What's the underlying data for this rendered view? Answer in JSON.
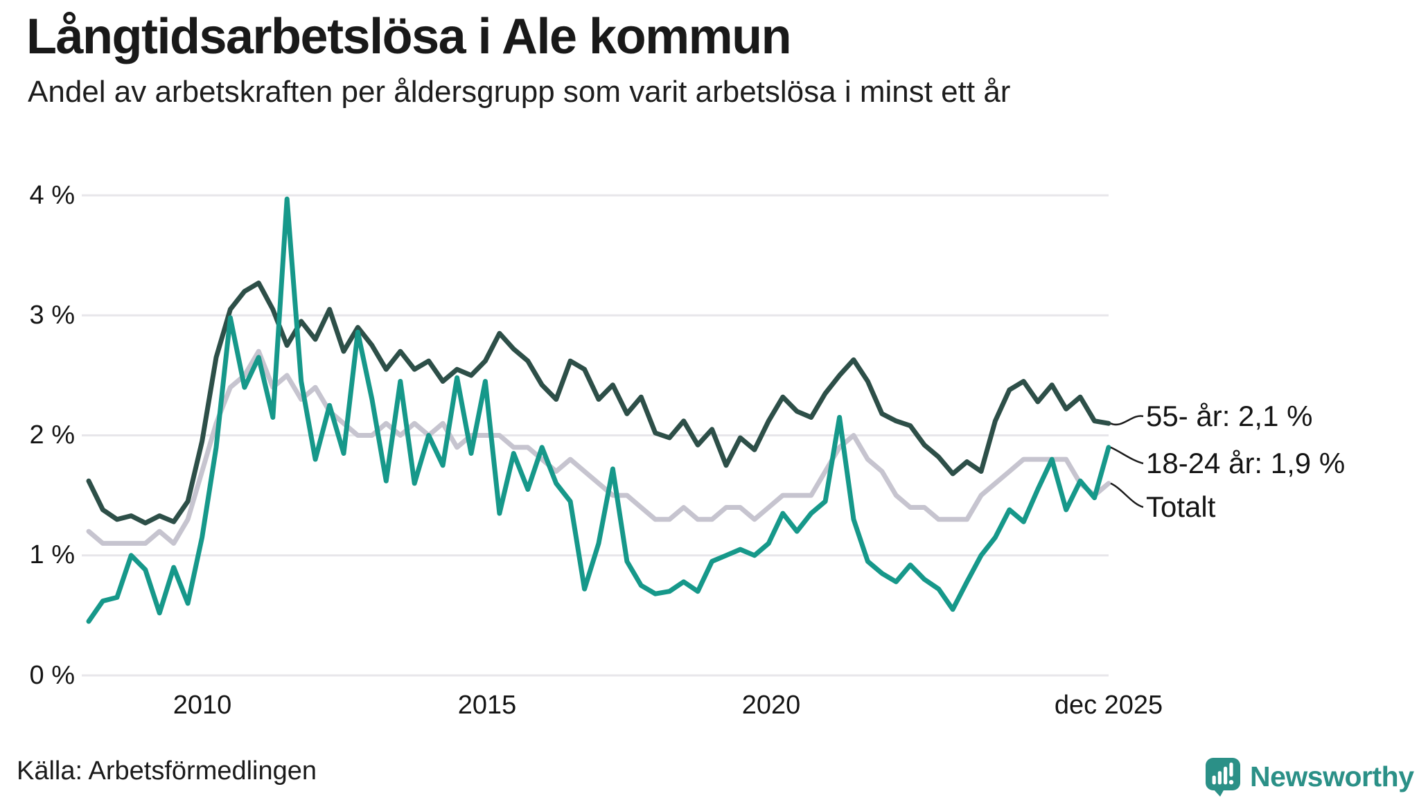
{
  "header": {
    "title": "Långtidsarbetslösa i Ale kommun",
    "subtitle": "Andel av arbetskraften per åldersgrupp som varit arbetslösa i minst ett år"
  },
  "footer": {
    "source": "Källa: Arbetsförmedlingen",
    "brand": "Newsworthy"
  },
  "colors": {
    "grid": "#e7e6ea",
    "text": "#1a1a1a",
    "connector": "#1b1b1b",
    "brand_teal": "#2b9087"
  },
  "chart_data": {
    "type": "line",
    "title": "Långtidsarbetslösa i Ale kommun",
    "subtitle": "Andel av arbetskraften per åldersgrupp som varit arbetslösa i minst ett år",
    "source": "Källa: Arbetsförmedlingen",
    "x_start_year": 2008,
    "x_end_year": 2025.92,
    "x_unit": "quarterly samples 2008Q1–2025Q4 plus dec 2025 endpoint",
    "ylim": [
      0,
      4.15
    ],
    "grid": true,
    "legend_position": "right-end-labels",
    "y_ticks": [
      {
        "label": "4 %",
        "value": 4
      },
      {
        "label": "3 %",
        "value": 3
      },
      {
        "label": "2 %",
        "value": 2
      },
      {
        "label": "1 %",
        "value": 1
      },
      {
        "label": "0 %",
        "value": 0
      }
    ],
    "x_ticks": [
      {
        "label": "2010",
        "year": 2010
      },
      {
        "label": "2015",
        "year": 2015
      },
      {
        "label": "2020",
        "year": 2020
      },
      {
        "label": "dec 2025",
        "year": 2025.92
      }
    ],
    "series": [
      {
        "name": "55- år",
        "end_label": "55- år: 2,1 %",
        "end_value": 2.1,
        "color": "#2d4f48",
        "values": [
          1.62,
          1.38,
          1.3,
          1.33,
          1.27,
          1.33,
          1.28,
          1.45,
          1.95,
          2.65,
          3.05,
          3.2,
          3.27,
          3.05,
          2.75,
          2.95,
          2.8,
          3.05,
          2.7,
          2.9,
          2.75,
          2.55,
          2.7,
          2.55,
          2.62,
          2.45,
          2.55,
          2.5,
          2.62,
          2.85,
          2.72,
          2.62,
          2.42,
          2.3,
          2.62,
          2.55,
          2.3,
          2.42,
          2.18,
          2.32,
          2.02,
          1.98,
          2.12,
          1.92,
          2.05,
          1.75,
          1.98,
          1.88,
          2.12,
          2.32,
          2.2,
          2.15,
          2.35,
          2.5,
          2.63,
          2.45,
          2.18,
          2.12,
          2.08,
          1.92,
          1.82,
          1.68,
          1.78,
          1.7,
          2.12,
          2.38,
          2.45,
          2.28,
          2.42,
          2.22,
          2.32,
          2.12,
          2.1
        ]
      },
      {
        "name": "18-24 år",
        "end_label": "18-24 år: 1,9 %",
        "end_value": 1.9,
        "color": "#16988a",
        "values": [
          0.45,
          0.62,
          0.65,
          1.0,
          0.88,
          0.52,
          0.9,
          0.6,
          1.15,
          1.9,
          2.98,
          2.4,
          2.65,
          2.15,
          3.97,
          2.45,
          1.8,
          2.25,
          1.85,
          2.86,
          2.3,
          1.62,
          2.45,
          1.6,
          2.0,
          1.75,
          2.48,
          1.85,
          2.45,
          1.35,
          1.85,
          1.55,
          1.9,
          1.6,
          1.45,
          0.72,
          1.1,
          1.72,
          0.95,
          0.75,
          0.68,
          0.7,
          0.78,
          0.7,
          0.95,
          1.0,
          1.05,
          1.0,
          1.1,
          1.35,
          1.2,
          1.35,
          1.45,
          2.15,
          1.3,
          0.95,
          0.85,
          0.78,
          0.92,
          0.8,
          0.72,
          0.55,
          0.78,
          1.0,
          1.15,
          1.38,
          1.28,
          1.55,
          1.8,
          1.38,
          1.62,
          1.48,
          1.9
        ]
      },
      {
        "name": "Totalt",
        "end_label": "Totalt",
        "end_value": 1.6,
        "color": "#c6c4cf",
        "values": [
          1.2,
          1.1,
          1.1,
          1.1,
          1.1,
          1.2,
          1.1,
          1.3,
          1.7,
          2.1,
          2.4,
          2.5,
          2.7,
          2.4,
          2.5,
          2.3,
          2.4,
          2.2,
          2.1,
          2.0,
          2.0,
          2.1,
          2.0,
          2.1,
          2.0,
          2.1,
          1.9,
          2.0,
          2.0,
          2.0,
          1.9,
          1.9,
          1.8,
          1.7,
          1.8,
          1.7,
          1.6,
          1.5,
          1.5,
          1.4,
          1.3,
          1.3,
          1.4,
          1.3,
          1.3,
          1.4,
          1.4,
          1.3,
          1.4,
          1.5,
          1.5,
          1.5,
          1.7,
          1.9,
          2.0,
          1.8,
          1.7,
          1.5,
          1.4,
          1.4,
          1.3,
          1.3,
          1.3,
          1.5,
          1.6,
          1.7,
          1.8,
          1.8,
          1.8,
          1.8,
          1.6,
          1.5,
          1.6
        ]
      }
    ]
  }
}
